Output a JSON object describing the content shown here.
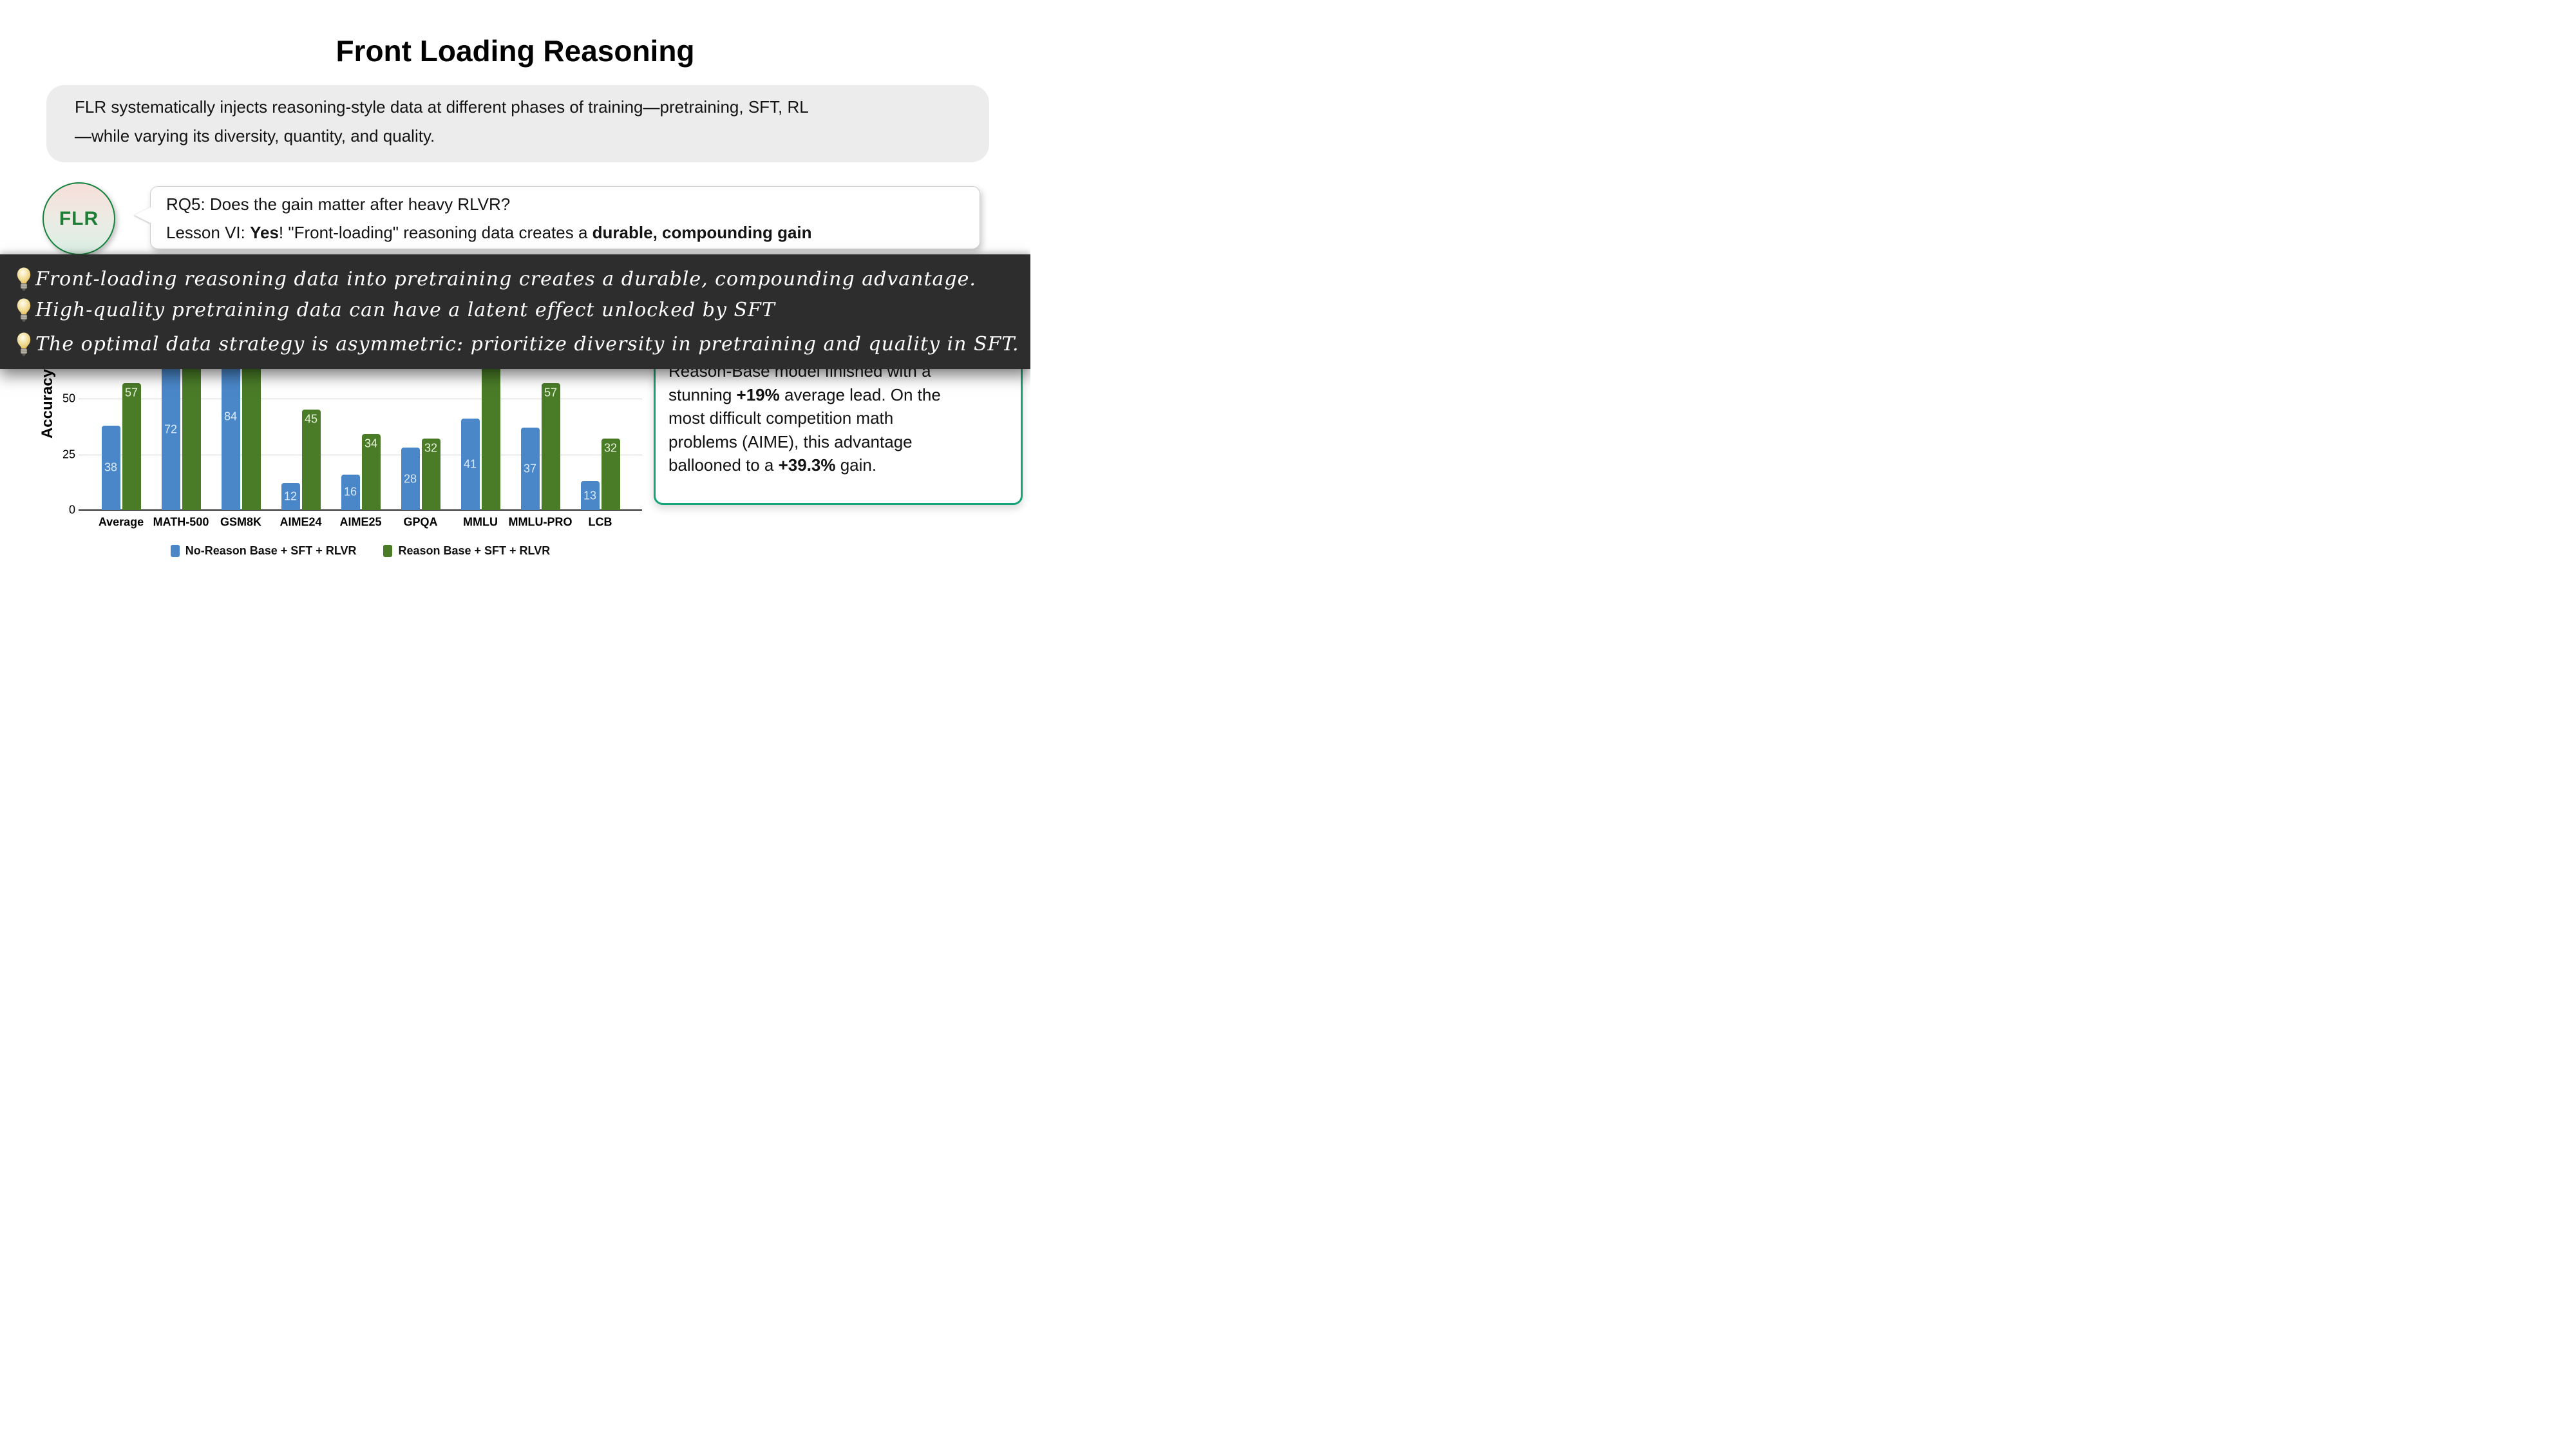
{
  "title": "Front Loading Reasoning",
  "intro_box": {
    "lines": [
      "FLR systematically injects reasoning-style data at different phases of training—pretraining, SFT, RL",
      "—while varying its diversity, quantity, and quality."
    ]
  },
  "flr_badge": {
    "label": "FLR"
  },
  "speech_bubble": {
    "line1": "RQ5: Does the gain matter after heavy RLVR?",
    "line2_runs": [
      {
        "t": "Lesson VI: "
      },
      {
        "t": "Yes",
        "b": true
      },
      {
        "t": "! \"Front-loading\" reasoning data creates a "
      },
      {
        "t": "durable, compounding gain",
        "b": true
      }
    ]
  },
  "insights_banner": {
    "background": "#2d2d2d",
    "text_color": "#ffffff",
    "bullet_icon": "lightbulb-icon",
    "items": [
      "Front-loading reasoning data into pretraining creates a durable, compounding advantage.",
      "High-quality pretraining data can have a latent effect unlocked by SFT",
      "The optimal data strategy is asymmetric: prioritize diversity in pretraining and quality in SFT."
    ]
  },
  "chart_data": {
    "type": "bar",
    "ylabel": "Accuracy",
    "yticks": [
      0,
      25,
      50
    ],
    "ylim": [
      0,
      59
    ],
    "grid": true,
    "legend_position": "bottom",
    "categories": [
      "Average",
      "MATH-500",
      "GSM8K",
      "AIME24",
      "AIME25",
      "GPQA",
      "MMLU",
      "MMLU-PRO",
      "LCB"
    ],
    "series": [
      {
        "name": "No-Reason Base + SFT + RLVR",
        "color": "#4a87c9",
        "label_color": "#d9e9fb",
        "label_anchor": "center",
        "values": [
          38,
          72,
          84,
          12,
          16,
          28,
          41,
          37,
          13
        ]
      },
      {
        "name": "Reason Base + SFT + RLVR",
        "color": "#4a7c28",
        "label_color": "#e6f3da",
        "label_anchor": "top",
        "values": [
          57,
          null,
          null,
          45,
          34,
          32,
          null,
          57,
          32
        ]
      }
    ],
    "occlusion_note": "bars taller than ~59 extend up behind the dark insights banner; their tops (and the green value labels for MATH-500, GSM8K, MMLU) are not visible"
  },
  "result_box": {
    "border_color": "#15a377",
    "lines": [
      [
        {
          "t": "Reason-Base model finished with a"
        }
      ],
      [
        {
          "t": "stunning "
        },
        {
          "t": "+19%",
          "b": true
        },
        {
          "t": " average lead. On the"
        }
      ],
      [
        {
          "t": "most difficult competition math"
        }
      ],
      [
        {
          "t": "problems (AIME), this advantage"
        }
      ],
      [
        {
          "t": "ballooned to a "
        },
        {
          "t": "+39.3%",
          "b": true
        },
        {
          "t": " gain."
        }
      ]
    ]
  }
}
